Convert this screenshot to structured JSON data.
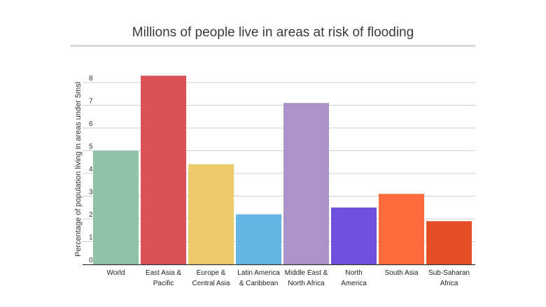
{
  "chart_data": {
    "type": "bar",
    "title": "Millions of people live in areas at risk of flooding",
    "ylabel": "Percentage of population living in areas under 5msl",
    "xlabel": "",
    "ylim": [
      0,
      8.5
    ],
    "yticks": [
      "0",
      "1",
      "2",
      "3",
      "4",
      "5",
      "6",
      "7",
      "8"
    ],
    "grid": true,
    "categories": [
      [
        "World"
      ],
      [
        "East Asia &",
        "Pacific"
      ],
      [
        "Europe &",
        "Central Asia"
      ],
      [
        "Latin America",
        "& Caribbean"
      ],
      [
        "Middle East &",
        "North Africa"
      ],
      [
        "North",
        "America"
      ],
      [
        "South Asia"
      ],
      [
        "Sub-Saharan",
        "Africa"
      ]
    ],
    "values": [
      5.0,
      8.3,
      4.4,
      2.2,
      7.1,
      2.5,
      3.1,
      1.9
    ],
    "colors": [
      "#8fc3a7",
      "#d95257",
      "#efca6b",
      "#62b6e4",
      "#ab92c9",
      "#6e50da",
      "#fd6a3b",
      "#e44f28"
    ]
  }
}
